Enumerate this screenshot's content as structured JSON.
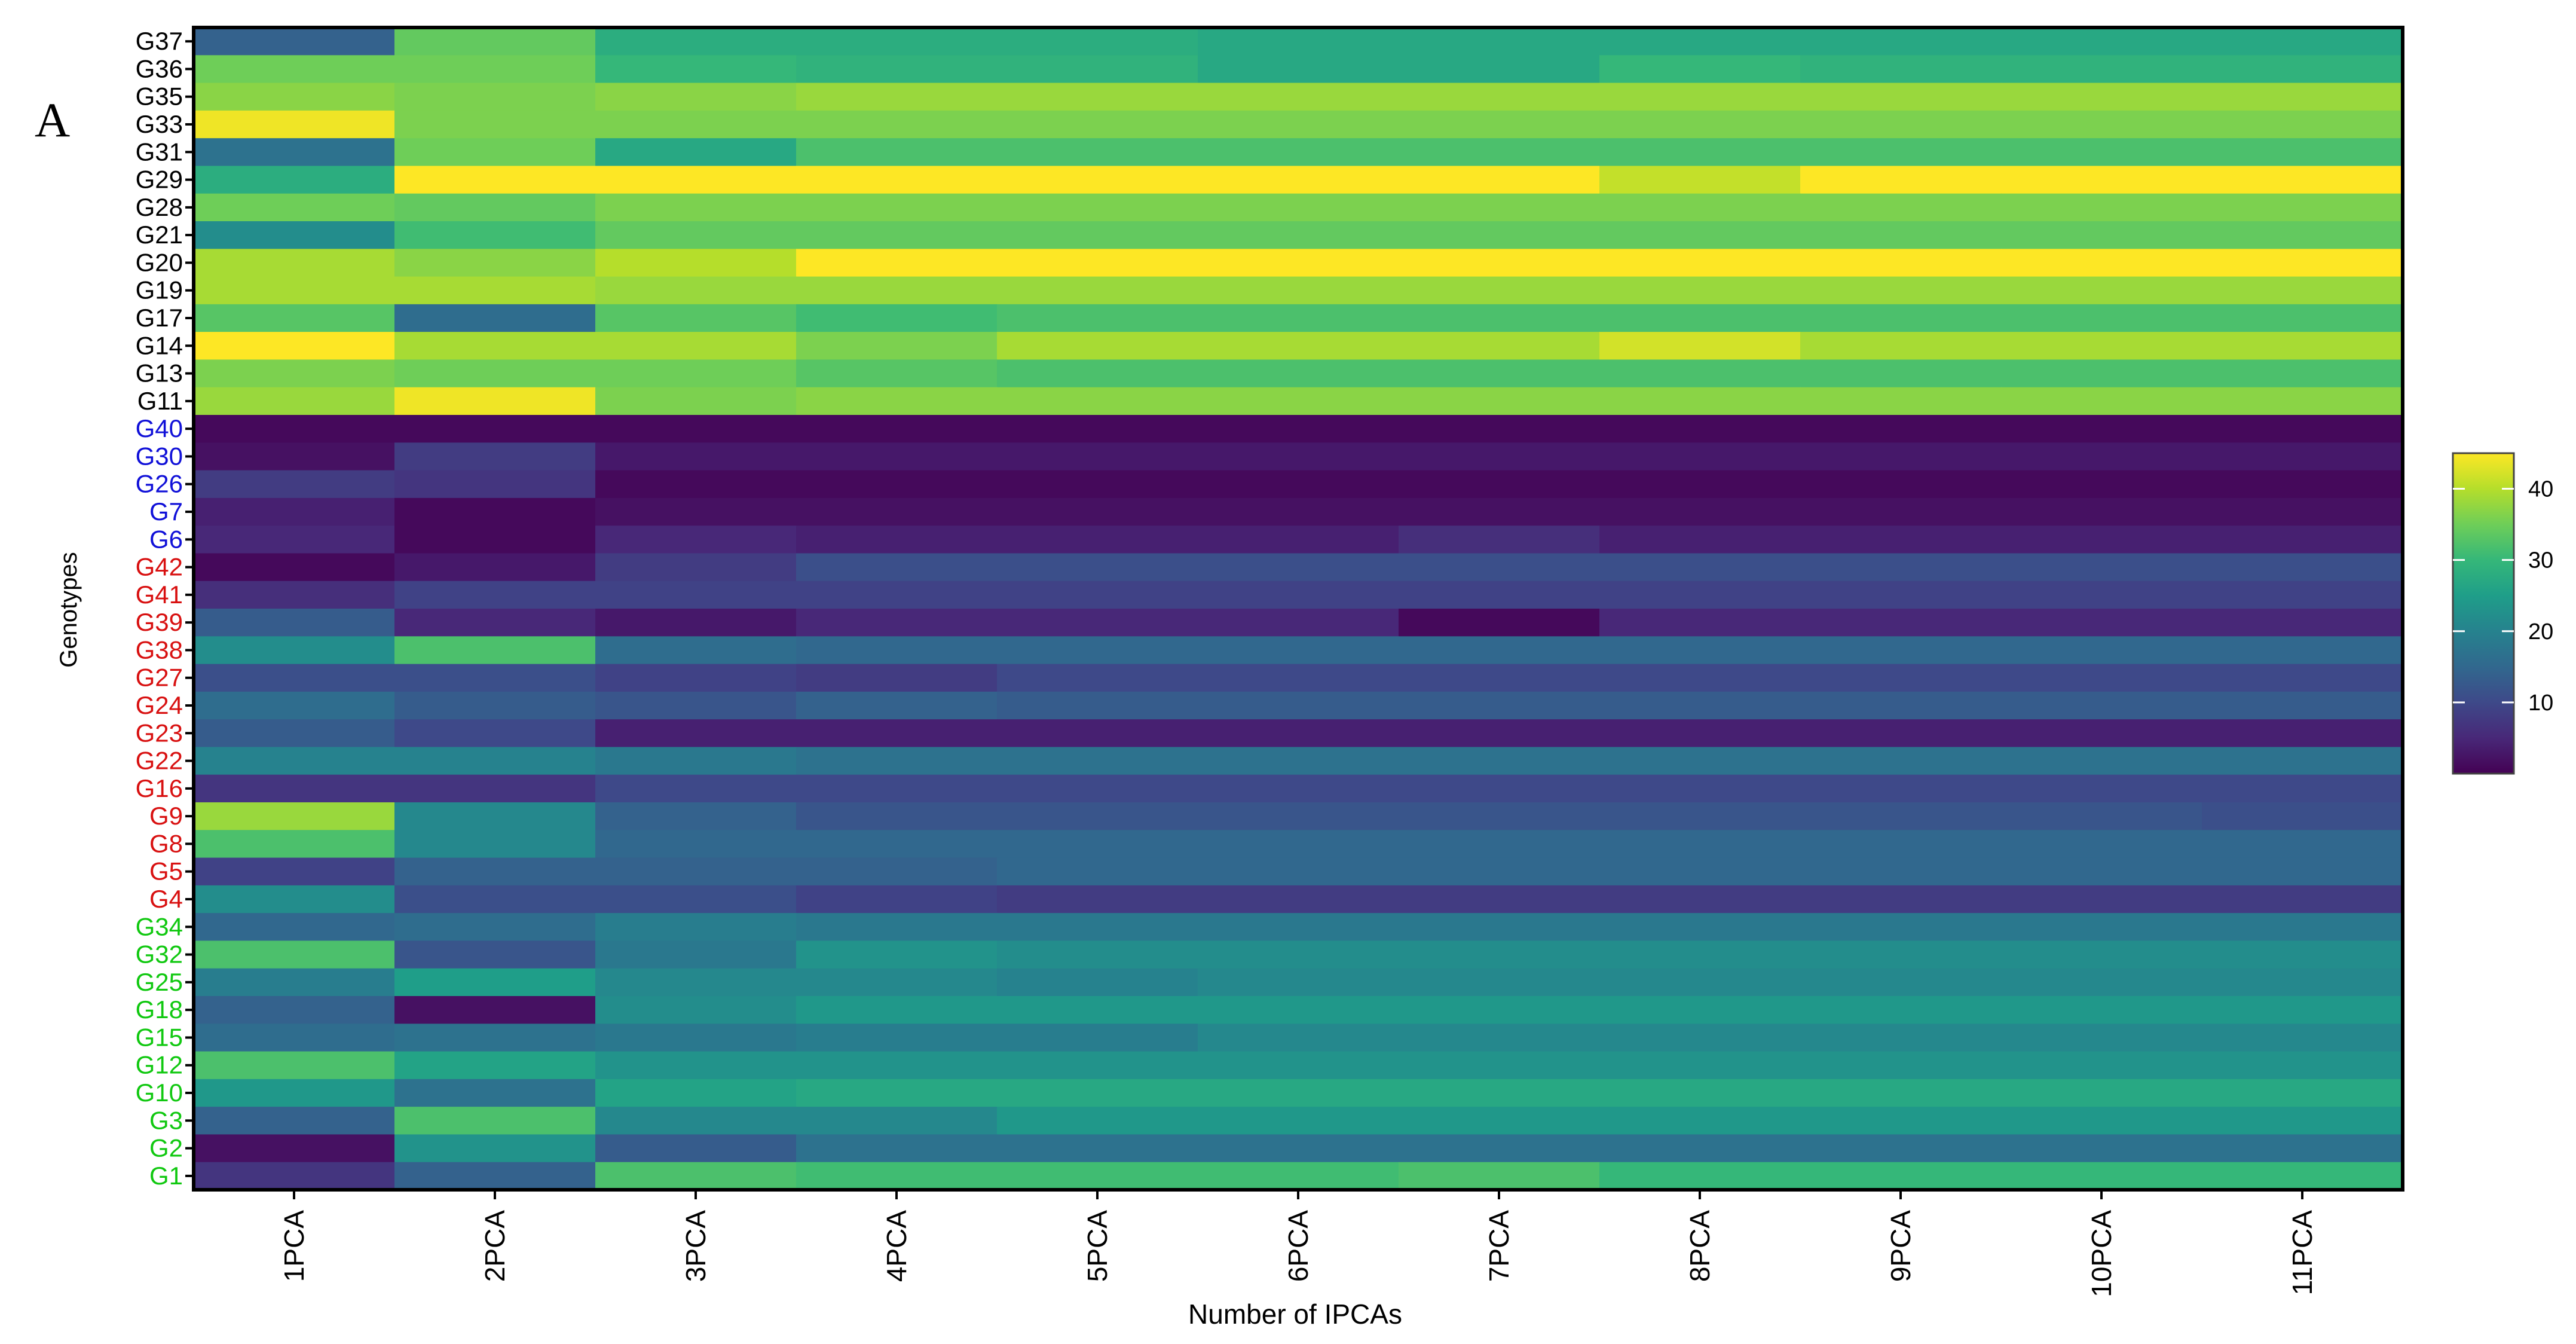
{
  "chart_data": {
    "type": "heatmap",
    "panel_label": "A",
    "xlabel": "Number of IPCAs",
    "ylabel": "Genotypes",
    "columns": [
      "1PCA",
      "2PCA",
      "3PCA",
      "4PCA",
      "5PCA",
      "6PCA",
      "7PCA",
      "8PCA",
      "9PCA",
      "10PCA",
      "11PCA"
    ],
    "rows": [
      {
        "label": "G37",
        "group": "black",
        "values": [
          14,
          34,
          28,
          28,
          28,
          27,
          27,
          27,
          27,
          27,
          27
        ]
      },
      {
        "label": "G36",
        "group": "black",
        "values": [
          35,
          35,
          30,
          29,
          29,
          27,
          27,
          30,
          29,
          29,
          29
        ]
      },
      {
        "label": "G35",
        "group": "black",
        "values": [
          37,
          36,
          37,
          38,
          38,
          38,
          38,
          38,
          38,
          38,
          38
        ]
      },
      {
        "label": "G33",
        "group": "black",
        "values": [
          44,
          36,
          36,
          36,
          36,
          36,
          36,
          36,
          36,
          36,
          36
        ]
      },
      {
        "label": "G31",
        "group": "black",
        "values": [
          17,
          35,
          27,
          32,
          32,
          32,
          32,
          32,
          32,
          32,
          32
        ]
      },
      {
        "label": "G29",
        "group": "black",
        "values": [
          28,
          45,
          45,
          45,
          45,
          45,
          45,
          41,
          45,
          45,
          45
        ]
      },
      {
        "label": "G28",
        "group": "black",
        "values": [
          35,
          34,
          36,
          36,
          36,
          36,
          36,
          36,
          36,
          36,
          36
        ]
      },
      {
        "label": "G21",
        "group": "black",
        "values": [
          22,
          31,
          34,
          34,
          34,
          34,
          34,
          34,
          34,
          34,
          34
        ]
      },
      {
        "label": "G20",
        "group": "black",
        "values": [
          39,
          37,
          40,
          45,
          45,
          45,
          45,
          45,
          45,
          45,
          45
        ]
      },
      {
        "label": "G19",
        "group": "black",
        "values": [
          39,
          39,
          38,
          38,
          38,
          38,
          38,
          38,
          38,
          38,
          38
        ]
      },
      {
        "label": "G17",
        "group": "black",
        "values": [
          33,
          16,
          33,
          31,
          32,
          32,
          32,
          32,
          32,
          32,
          32
        ]
      },
      {
        "label": "G14",
        "group": "black",
        "values": [
          45,
          39,
          39,
          36,
          39,
          39,
          39,
          42,
          39,
          39,
          39
        ]
      },
      {
        "label": "G13",
        "group": "black",
        "values": [
          36,
          35,
          35,
          33,
          32,
          32,
          32,
          32,
          32,
          32,
          32
        ]
      },
      {
        "label": "G11",
        "group": "black",
        "values": [
          38,
          44,
          36,
          37,
          37,
          37,
          37,
          37,
          37,
          37,
          37
        ]
      },
      {
        "label": "G40",
        "group": "blue",
        "values": [
          1,
          1,
          1,
          1,
          1,
          1,
          1,
          1,
          1,
          1,
          1
        ]
      },
      {
        "label": "G30",
        "group": "blue",
        "values": [
          2,
          8,
          3,
          3,
          3,
          3,
          3,
          3,
          3,
          3,
          3
        ]
      },
      {
        "label": "G26",
        "group": "blue",
        "values": [
          8,
          7,
          1,
          1,
          1,
          1,
          1,
          1,
          1,
          1,
          1
        ]
      },
      {
        "label": "G7",
        "group": "blue",
        "values": [
          4,
          1,
          2,
          2,
          2,
          2,
          2,
          2,
          2,
          2,
          2
        ]
      },
      {
        "label": "G6",
        "group": "blue",
        "values": [
          5,
          1,
          5,
          4,
          4,
          4,
          6,
          4,
          4,
          4,
          4
        ]
      },
      {
        "label": "G42",
        "group": "red",
        "values": [
          1,
          3,
          8,
          11,
          11,
          11,
          11,
          11,
          11,
          11,
          11
        ]
      },
      {
        "label": "G41",
        "group": "red",
        "values": [
          6,
          9,
          9,
          9,
          9,
          9,
          9,
          9,
          9,
          9,
          9
        ]
      },
      {
        "label": "G39",
        "group": "red",
        "values": [
          13,
          5,
          3,
          5,
          5,
          5,
          1,
          5,
          5,
          5,
          5
        ]
      },
      {
        "label": "G38",
        "group": "red",
        "values": [
          22,
          32,
          16,
          15,
          15,
          15,
          15,
          15,
          15,
          15,
          15
        ]
      },
      {
        "label": "G27",
        "group": "red",
        "values": [
          11,
          11,
          9,
          8,
          10,
          10,
          10,
          10,
          10,
          10,
          10
        ]
      },
      {
        "label": "G24",
        "group": "red",
        "values": [
          16,
          13,
          12,
          14,
          13,
          13,
          13,
          13,
          13,
          13,
          13
        ]
      },
      {
        "label": "G23",
        "group": "red",
        "values": [
          13,
          10,
          4,
          4,
          4,
          4,
          4,
          4,
          4,
          4,
          4
        ]
      },
      {
        "label": "G22",
        "group": "red",
        "values": [
          20,
          20,
          18,
          17,
          17,
          17,
          17,
          17,
          17,
          17,
          17
        ]
      },
      {
        "label": "G16",
        "group": "red",
        "values": [
          7,
          7,
          10,
          10,
          10,
          10,
          10,
          10,
          10,
          10,
          10
        ]
      },
      {
        "label": "G9",
        "group": "red",
        "values": [
          38,
          21,
          14,
          12,
          12,
          12,
          12,
          12,
          12,
          12,
          11
        ]
      },
      {
        "label": "G8",
        "group": "red",
        "values": [
          32,
          21,
          15,
          15,
          15,
          15,
          15,
          15,
          15,
          15,
          15
        ]
      },
      {
        "label": "G5",
        "group": "red",
        "values": [
          9,
          14,
          14,
          14,
          15,
          15,
          15,
          15,
          15,
          15,
          15
        ]
      },
      {
        "label": "G4",
        "group": "red",
        "values": [
          22,
          11,
          11,
          9,
          8,
          8,
          8,
          8,
          8,
          8,
          8
        ]
      },
      {
        "label": "G34",
        "group": "green",
        "values": [
          15,
          16,
          19,
          18,
          18,
          18,
          18,
          18,
          18,
          18,
          18
        ]
      },
      {
        "label": "G32",
        "group": "green",
        "values": [
          32,
          12,
          18,
          23,
          22,
          22,
          22,
          22,
          22,
          22,
          22
        ]
      },
      {
        "label": "G25",
        "group": "green",
        "values": [
          19,
          25,
          21,
          21,
          20,
          21,
          21,
          21,
          21,
          21,
          21
        ]
      },
      {
        "label": "G18",
        "group": "green",
        "values": [
          14,
          2,
          22,
          24,
          24,
          24,
          24,
          24,
          24,
          24,
          24
        ]
      },
      {
        "label": "G15",
        "group": "green",
        "values": [
          16,
          17,
          18,
          19,
          19,
          21,
          21,
          21,
          21,
          21,
          21
        ]
      },
      {
        "label": "G12",
        "group": "green",
        "values": [
          32,
          26,
          23,
          23,
          23,
          23,
          23,
          23,
          23,
          23,
          23
        ]
      },
      {
        "label": "G10",
        "group": "green",
        "values": [
          24,
          17,
          26,
          27,
          27,
          27,
          27,
          27,
          27,
          27,
          27
        ]
      },
      {
        "label": "G3",
        "group": "green",
        "values": [
          14,
          32,
          21,
          21,
          24,
          24,
          24,
          24,
          24,
          24,
          24
        ]
      },
      {
        "label": "G2",
        "group": "green",
        "values": [
          2,
          23,
          13,
          17,
          17,
          17,
          17,
          17,
          17,
          17,
          17
        ]
      },
      {
        "label": "G1",
        "group": "green",
        "values": [
          7,
          14,
          32,
          31,
          31,
          31,
          32,
          30,
          30,
          30,
          30
        ]
      }
    ],
    "colorbar": {
      "ticks": [
        10,
        20,
        30,
        40
      ],
      "min": 0,
      "max": 45,
      "colormap": "viridis",
      "stops": [
        "#440154",
        "#482878",
        "#3e4989",
        "#31688e",
        "#26828e",
        "#1f9e89",
        "#35b779",
        "#6ece58",
        "#b5de2b",
        "#fde725"
      ]
    },
    "label_colors": {
      "black": "#000000",
      "blue": "#1010d8",
      "red": "#d81010",
      "green": "#10c810"
    },
    "grid": false
  }
}
